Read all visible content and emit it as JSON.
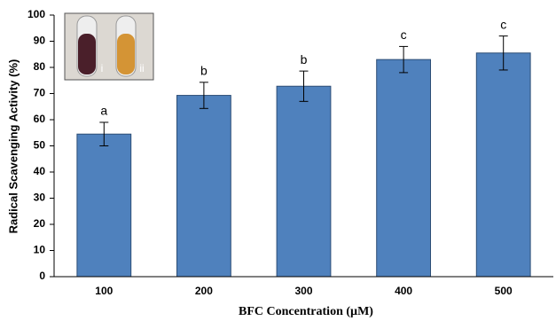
{
  "chart_data": {
    "type": "bar",
    "x_label": "BFC Concentration  (µM)",
    "y_label": "Radical Scavenging Activity (%)",
    "categories": [
      "100",
      "200",
      "300",
      "400",
      "500"
    ],
    "values": [
      54.5,
      69.3,
      72.8,
      83,
      85.5
    ],
    "errors": [
      4.5,
      5,
      5.8,
      5,
      6.5
    ],
    "annotations": [
      "a",
      "b",
      "b",
      "c",
      "c"
    ],
    "inset_labels": [
      "i",
      "ii"
    ],
    "color": "#4f81bd",
    "ylim": [
      0,
      100
    ],
    "yticks": [
      0,
      10,
      20,
      30,
      40,
      50,
      60,
      70,
      80,
      90,
      100
    ],
    "grid": false
  }
}
